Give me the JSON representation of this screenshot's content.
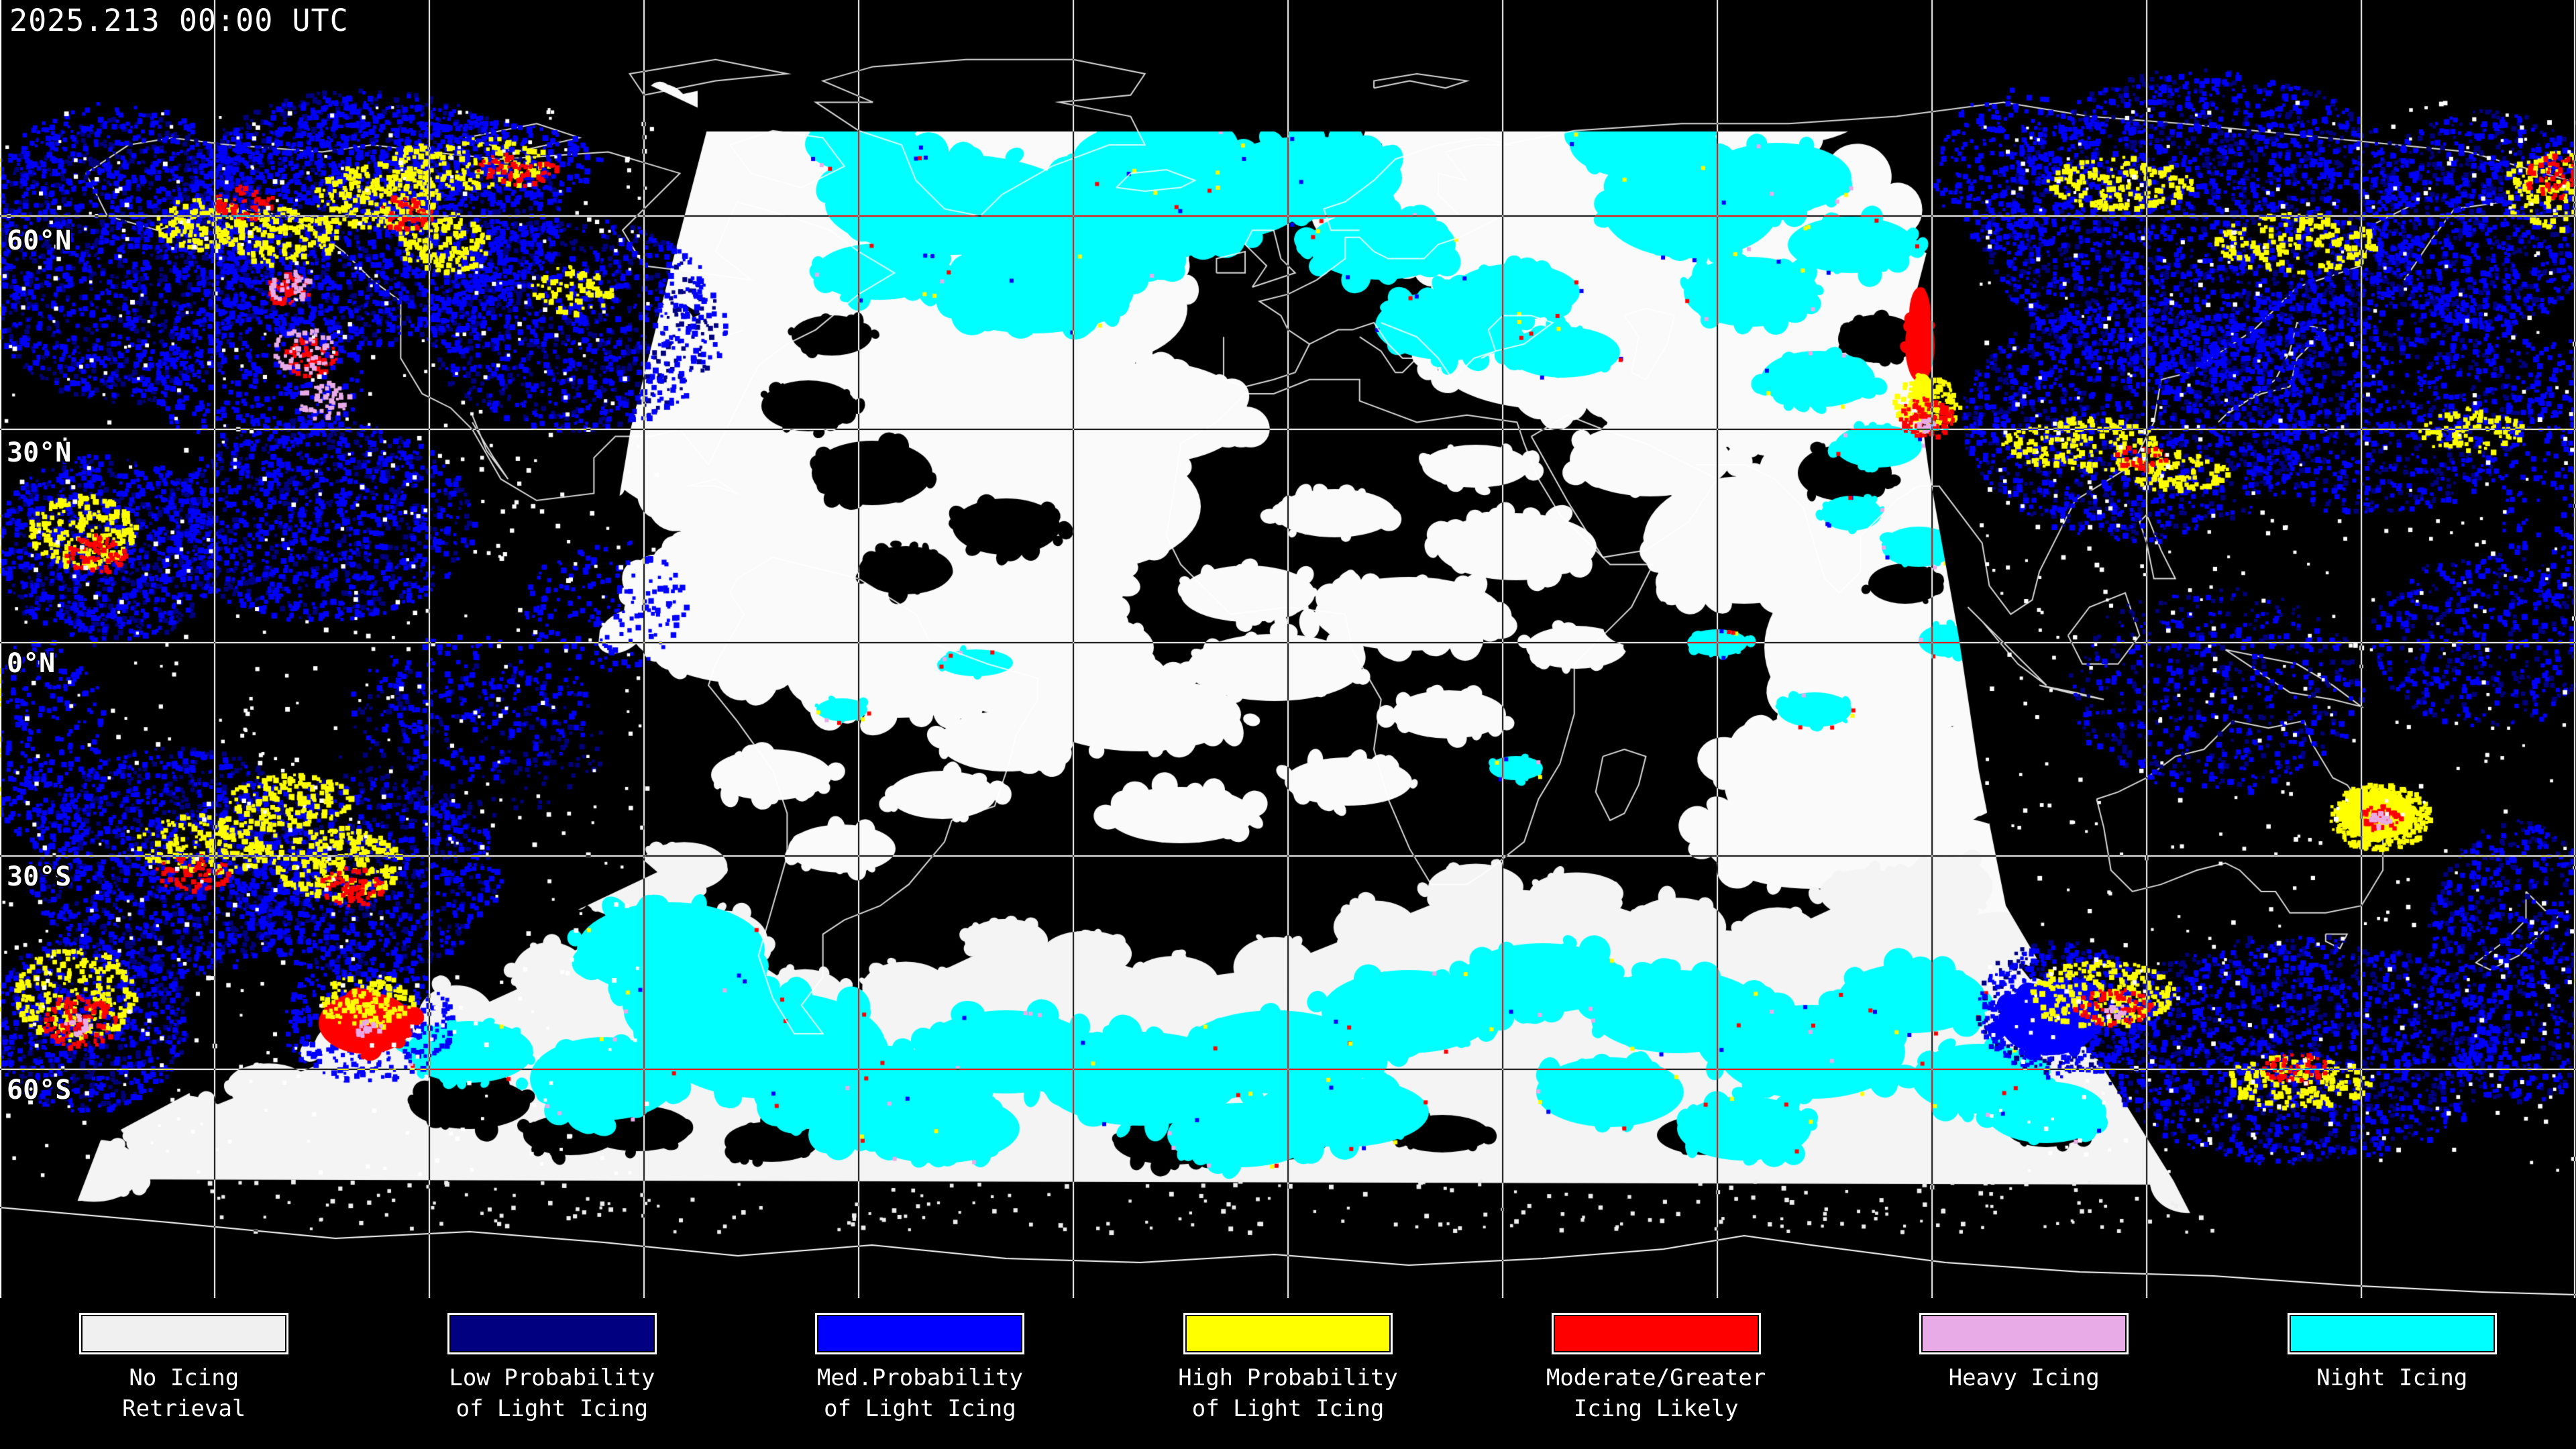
{
  "header": {
    "timestamp": "2025.213 00:00 UTC"
  },
  "map": {
    "latitude_labels": [
      {
        "text": "60°N",
        "lat": 60
      },
      {
        "text": "30°N",
        "lat": 30
      },
      {
        "text": "0°N",
        "lat": 0
      },
      {
        "text": "30°S",
        "lat": -30
      },
      {
        "text": "60°S",
        "lat": -60
      }
    ],
    "gridline_latitudes_deg": [
      60,
      30,
      0,
      -30,
      -60
    ],
    "gridline_longitude_step_deg": 30
  },
  "legend": {
    "items": [
      {
        "label_line1": "No Icing",
        "label_line2": "Retrieval",
        "color": "#F0F0F0"
      },
      {
        "label_line1": "Low Probability",
        "label_line2": "of Light Icing",
        "color": "#000080"
      },
      {
        "label_line1": "Med.Probability",
        "label_line2": "of Light Icing",
        "color": "#0000FF"
      },
      {
        "label_line1": "High Probability",
        "label_line2": "of Light Icing",
        "color": "#FFFF00"
      },
      {
        "label_line1": "Moderate/Greater",
        "label_line2": "Icing Likely",
        "color": "#FF0000"
      },
      {
        "label_line1": "Heavy Icing",
        "label_line2": "",
        "color": "#E8ABE8"
      },
      {
        "label_line1": "Night Icing",
        "label_line2": "",
        "color": "#00FFFF"
      }
    ]
  }
}
